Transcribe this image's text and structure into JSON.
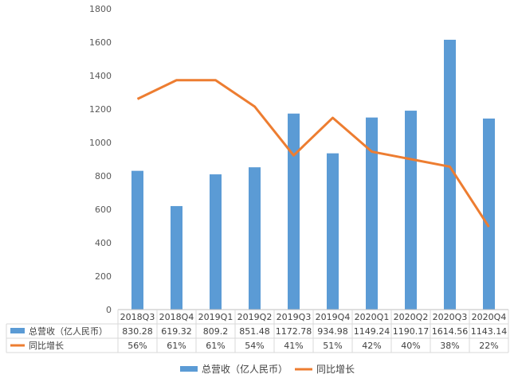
{
  "chart_data": {
    "type": "bar+line",
    "categories": [
      "2018Q3",
      "2018Q4",
      "2019Q1",
      "2019Q2",
      "2019Q3",
      "2019Q4",
      "2020Q1",
      "2020Q2",
      "2020Q3",
      "2020Q4"
    ],
    "series": [
      {
        "name": "总营收（亿人民币）",
        "type": "bar",
        "color": "#5B9BD5",
        "values": [
          830.28,
          619.32,
          809.2,
          851.48,
          1172.78,
          934.98,
          1149.24,
          1190.17,
          1614.56,
          1143.14
        ],
        "labels": [
          "830.28",
          "619.32",
          "809.2",
          "851.48",
          "1172.78",
          "934.98",
          "1149.24",
          "1190.17",
          "1614.56",
          "1143.14"
        ]
      },
      {
        "name": "同比增长",
        "type": "line",
        "color": "#ED7D31",
        "values": [
          0.56,
          0.61,
          0.61,
          0.54,
          0.41,
          0.51,
          0.42,
          0.4,
          0.38,
          0.22
        ],
        "labels": [
          "56%",
          "61%",
          "61%",
          "54%",
          "41%",
          "51%",
          "42%",
          "40%",
          "38%",
          "22%"
        ]
      }
    ],
    "yticks": [
      "0",
      "200",
      "400",
      "600",
      "800",
      "1000",
      "1200",
      "1400",
      "1600",
      "1800"
    ],
    "ylim": [
      0,
      1800
    ],
    "y2lim": [
      0,
      0.8
    ],
    "grid": false,
    "legend": "bottom",
    "data_table": true
  }
}
